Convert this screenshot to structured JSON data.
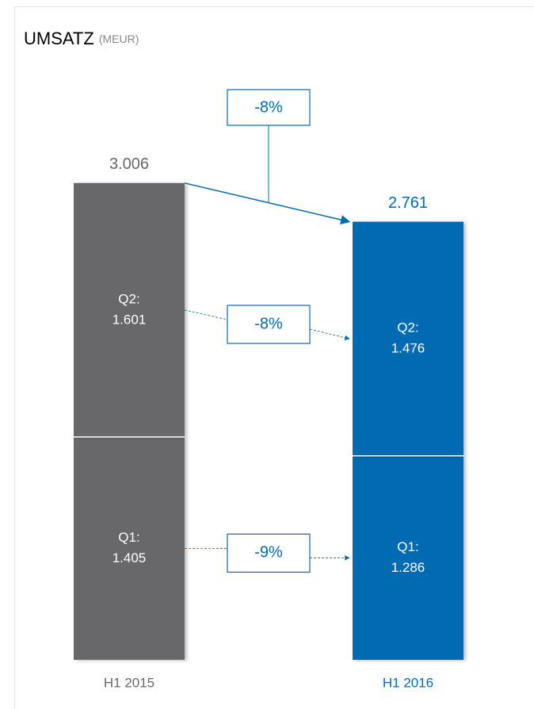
{
  "chart_data": {
    "type": "stacked_bar",
    "title": "UMSATZ",
    "subtitle": "(MEUR)",
    "categories": [
      "H1 2015",
      "H1 2016"
    ],
    "category_colors": [
      "#68676b",
      "#006ab3"
    ],
    "series": [
      {
        "name": "Q1:",
        "values": [
          1405,
          1286
        ],
        "value_labels": [
          "1.405",
          "1.286"
        ],
        "change_label": "-9%"
      },
      {
        "name": "Q2:",
        "values": [
          1601,
          1476
        ],
        "value_labels": [
          "1.601",
          "1.476"
        ],
        "change_label": "-8%"
      }
    ],
    "totals": {
      "values": [
        3006,
        2761
      ],
      "labels": [
        "3.006",
        "2.761"
      ]
    },
    "total_change_label": "-8%",
    "ylim": [
      0,
      3200
    ]
  }
}
